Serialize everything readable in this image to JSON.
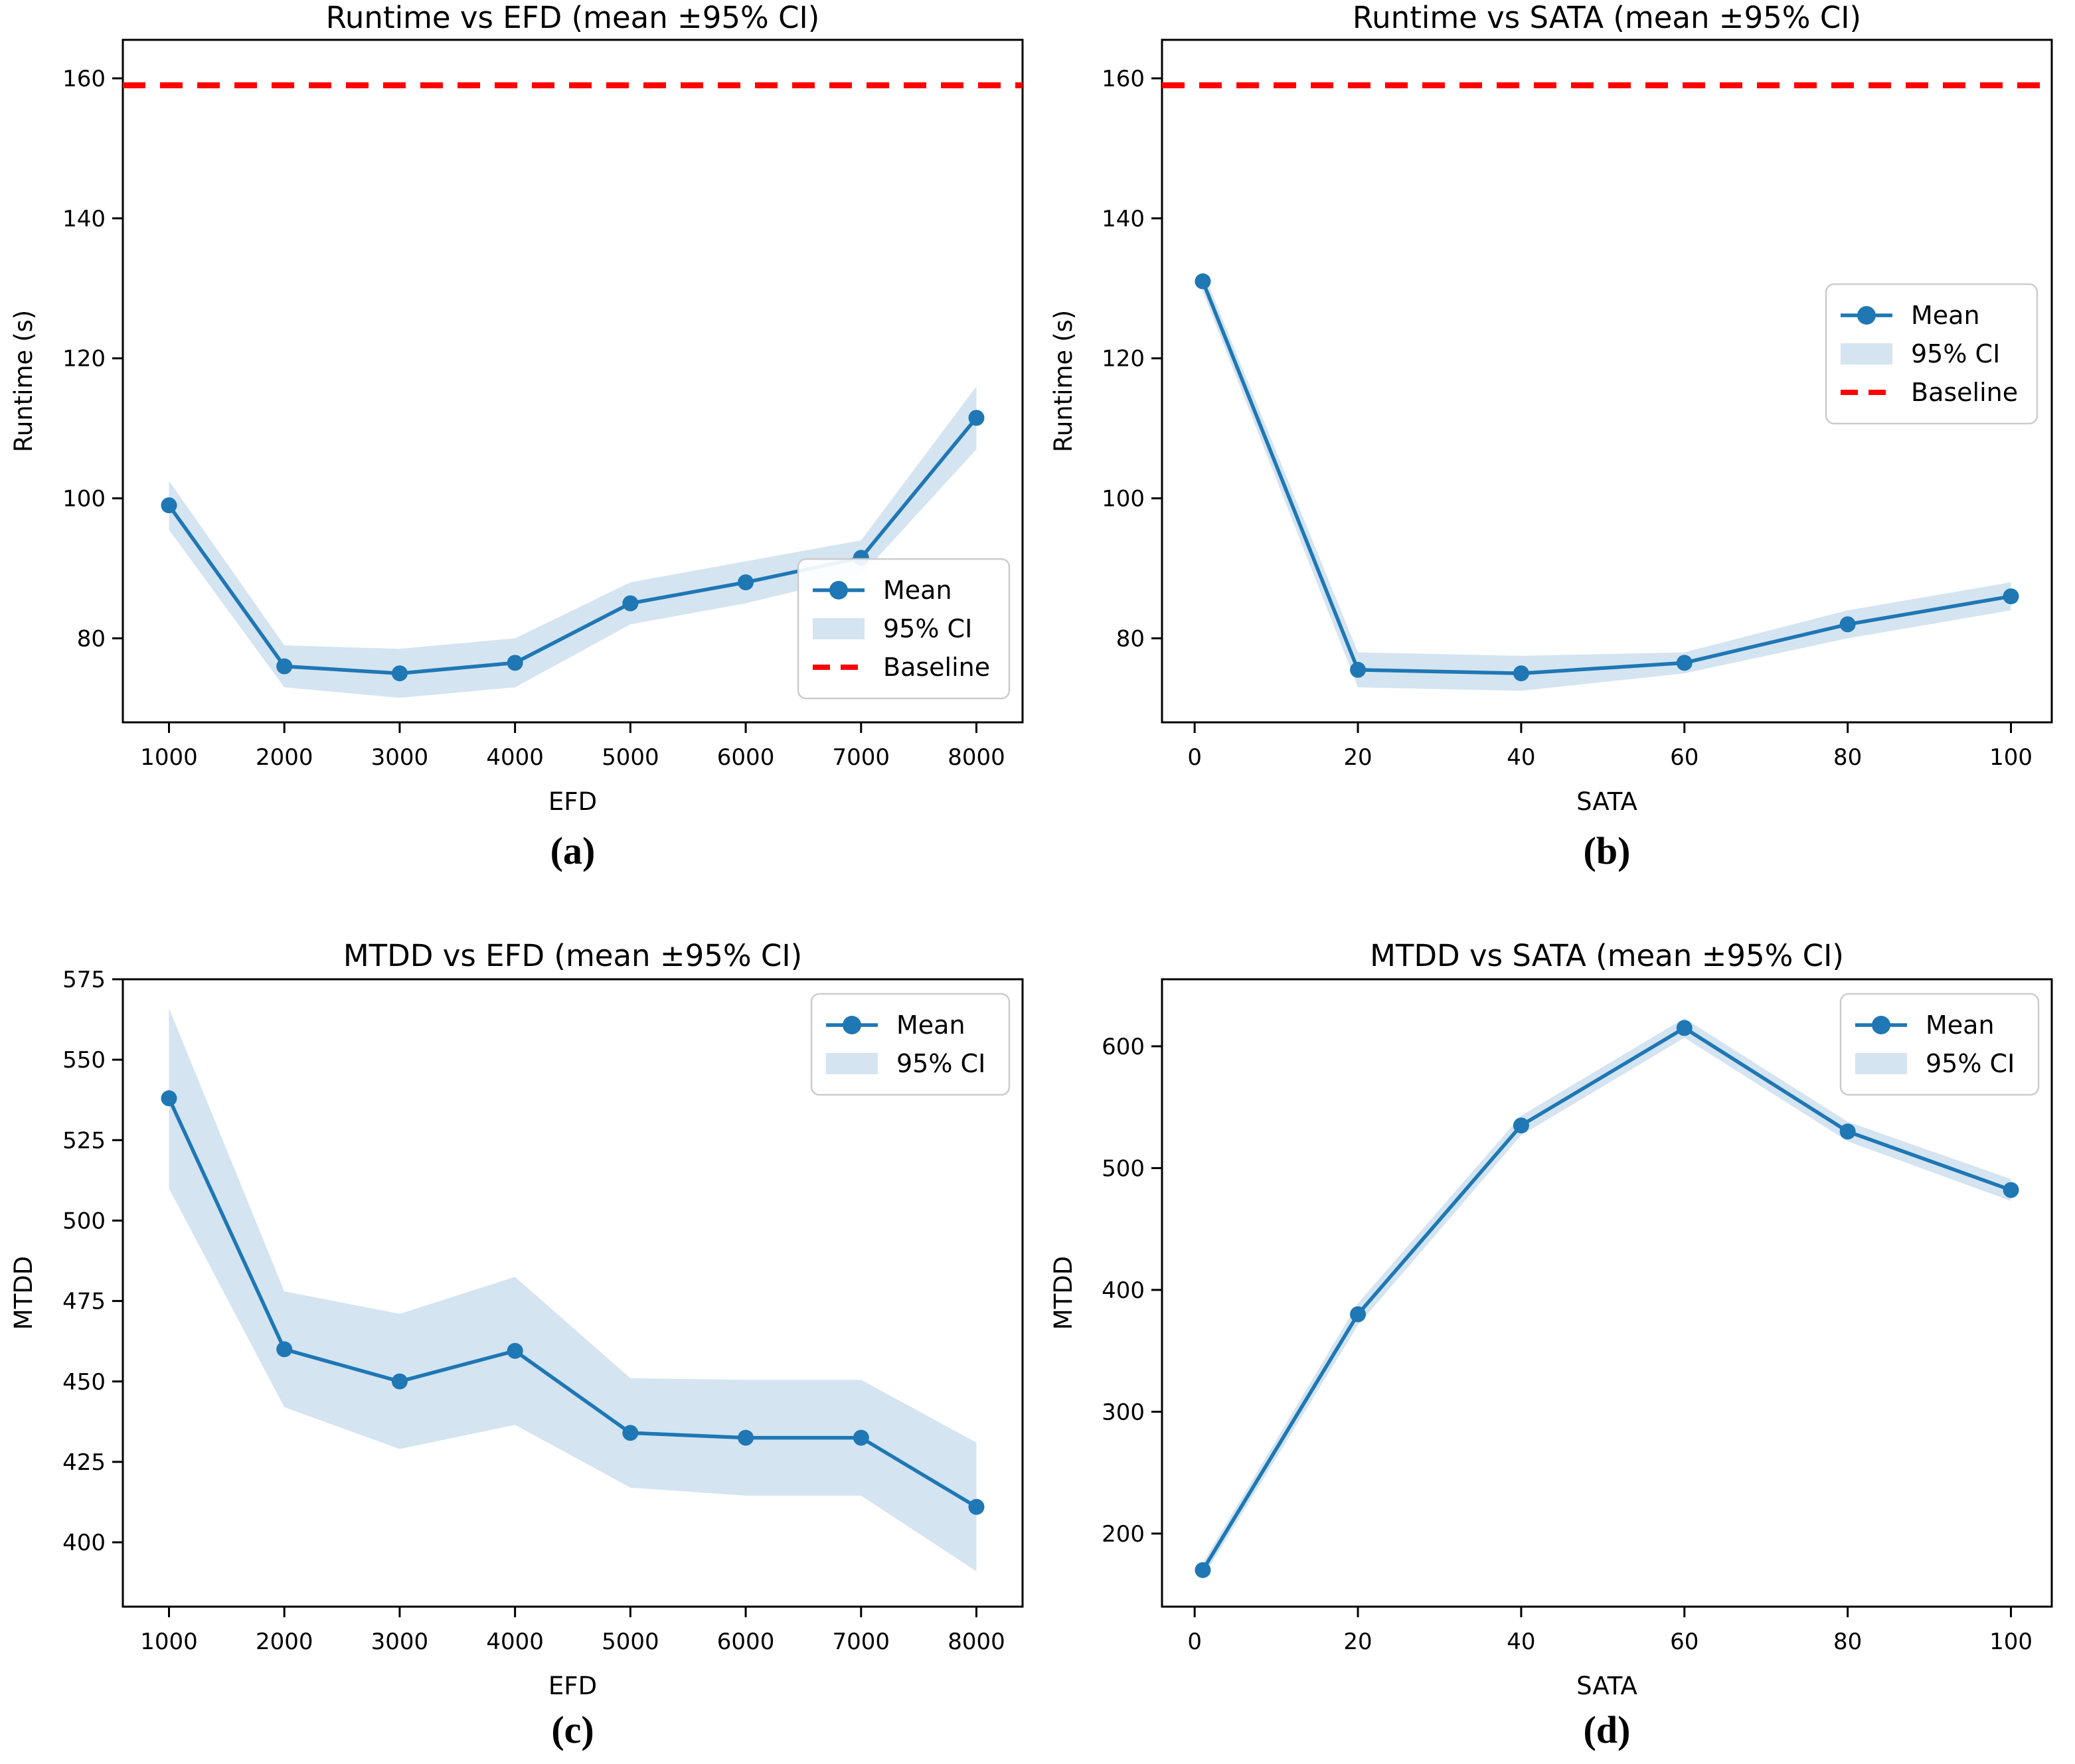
{
  "figure": {
    "background": "#ffffff",
    "colors": {
      "mean_line": "#1f77b4",
      "marker": "#1f77b4",
      "ci_fill": "#d4e4f1",
      "baseline": "#ff0000",
      "axis": "#000000",
      "tick_text": "#000000",
      "legend_border": "#cccccc",
      "legend_bg": "#ffffff"
    }
  },
  "chart_data": [
    {
      "id": "a",
      "type": "line",
      "title": "Runtime vs EFD (mean ±95% CI)",
      "xlabel": "EFD",
      "ylabel": "Runtime (s)",
      "caption": "(a)",
      "x": [
        1000,
        2000,
        3000,
        4000,
        5000,
        6000,
        7000,
        8000
      ],
      "series": [
        {
          "name": "Mean",
          "values": [
            99,
            76,
            75,
            76.5,
            85,
            88,
            91.5,
            111.5
          ],
          "ci_halfwidth": [
            3.5,
            3,
            3.5,
            3.5,
            3,
            3,
            2.5,
            4.5
          ]
        }
      ],
      "baseline": 159,
      "xlim": [
        600,
        8400
      ],
      "ylim": [
        68,
        165.5
      ],
      "xticks": [
        1000,
        2000,
        3000,
        4000,
        5000,
        6000,
        7000,
        8000
      ],
      "yticks": [
        80,
        100,
        120,
        140,
        160
      ],
      "grid": false,
      "legend": {
        "position": "lower-right",
        "entries": [
          "Mean",
          "95% CI",
          "Baseline"
        ]
      }
    },
    {
      "id": "b",
      "type": "line",
      "title": "Runtime vs SATA (mean ±95% CI)",
      "xlabel": "SATA",
      "ylabel": "Runtime (s)",
      "caption": "(b)",
      "x": [
        1,
        20,
        40,
        60,
        80,
        100
      ],
      "series": [
        {
          "name": "Mean",
          "values": [
            131,
            75.5,
            75,
            76.5,
            82,
            86
          ],
          "ci_halfwidth": [
            1.5,
            2.5,
            2.5,
            1.5,
            2,
            2
          ]
        }
      ],
      "baseline": 159,
      "xlim": [
        -4,
        105
      ],
      "ylim": [
        68,
        165.5
      ],
      "xticks": [
        0,
        20,
        40,
        60,
        80,
        100
      ],
      "yticks": [
        80,
        100,
        120,
        140,
        160
      ],
      "grid": false,
      "legend": {
        "position": "mid-right",
        "entries": [
          "Mean",
          "95% CI",
          "Baseline"
        ]
      }
    },
    {
      "id": "c",
      "type": "line",
      "title": "MTDD vs EFD (mean ±95% CI)",
      "xlabel": "EFD",
      "ylabel": "MTDD",
      "caption": "(c)",
      "x": [
        1000,
        2000,
        3000,
        4000,
        5000,
        6000,
        7000,
        8000
      ],
      "series": [
        {
          "name": "Mean",
          "values": [
            538,
            460,
            450,
            459.5,
            434,
            432.5,
            432.5,
            411
          ],
          "ci_halfwidth": [
            28,
            18,
            21,
            23,
            17,
            18,
            18,
            20
          ]
        }
      ],
      "baseline": null,
      "xlim": [
        600,
        8400
      ],
      "ylim": [
        380,
        575
      ],
      "xticks": [
        1000,
        2000,
        3000,
        4000,
        5000,
        6000,
        7000,
        8000
      ],
      "yticks": [
        400,
        425,
        450,
        475,
        500,
        525,
        550,
        575
      ],
      "grid": false,
      "legend": {
        "position": "upper-right",
        "entries": [
          "Mean",
          "95% CI"
        ]
      }
    },
    {
      "id": "d",
      "type": "line",
      "title": "MTDD vs SATA (mean ±95% CI)",
      "xlabel": "SATA",
      "ylabel": "MTDD",
      "caption": "(d)",
      "x": [
        1,
        20,
        40,
        60,
        80,
        100
      ],
      "series": [
        {
          "name": "Mean",
          "values": [
            170,
            380,
            535,
            615,
            530,
            482
          ],
          "ci_halfwidth": [
            6,
            9,
            8,
            8,
            8,
            9
          ]
        }
      ],
      "baseline": null,
      "xlim": [
        -4,
        105
      ],
      "ylim": [
        140,
        655
      ],
      "xticks": [
        0,
        20,
        40,
        60,
        80,
        100
      ],
      "yticks": [
        200,
        300,
        400,
        500,
        600
      ],
      "grid": false,
      "legend": {
        "position": "upper-right",
        "entries": [
          "Mean",
          "95% CI"
        ]
      }
    }
  ]
}
